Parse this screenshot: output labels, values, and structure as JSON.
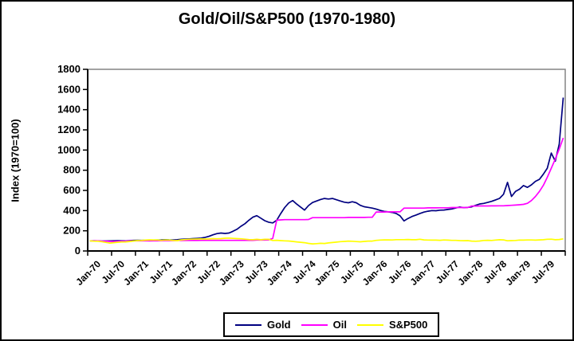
{
  "chart_data": {
    "type": "line",
    "title": "Gold/Oil/S&P500 (1970-1980)",
    "ylabel": "Index (1970=100)",
    "xlabel": "",
    "ylim": [
      0,
      1800
    ],
    "ytick_interval": 200,
    "grid": false,
    "legend_position": "bottom",
    "x_frequency": "monthly",
    "x_range": "Jan-1970 to Dec-1979",
    "x_tick_labels": [
      "Jan-70",
      "Jul-70",
      "Jan-71",
      "Jul-71",
      "Jan-72",
      "Jul-72",
      "Jan-73",
      "Jul-73",
      "Jan-74",
      "Jul-74",
      "Jan-75",
      "Jul-75",
      "Jan-76",
      "Jul-76",
      "Jan-77",
      "Jul-77",
      "Jan-78",
      "Jul-78",
      "Jan-79",
      "Jul-79"
    ],
    "series": [
      {
        "name": "Gold",
        "color": "#000080",
        "values": [
          100,
          101,
          100,
          98,
          99,
          100,
          101,
          102,
          101,
          100,
          103,
          105,
          106,
          105,
          106,
          107,
          108,
          109,
          110,
          112,
          110,
          109,
          111,
          115,
          118,
          120,
          122,
          125,
          128,
          135,
          145,
          160,
          172,
          178,
          174,
          178,
          195,
          215,
          245,
          270,
          305,
          335,
          350,
          325,
          300,
          285,
          278,
          305,
          370,
          430,
          475,
          500,
          465,
          435,
          405,
          450,
          480,
          495,
          510,
          520,
          515,
          520,
          508,
          495,
          483,
          478,
          488,
          478,
          452,
          438,
          432,
          425,
          415,
          402,
          392,
          388,
          382,
          372,
          348,
          298,
          322,
          342,
          356,
          372,
          385,
          394,
          400,
          399,
          404,
          406,
          411,
          416,
          426,
          436,
          429,
          432,
          437,
          452,
          466,
          471,
          481,
          492,
          506,
          521,
          562,
          680,
          540,
          590,
          612,
          648,
          630,
          655,
          690,
          710,
          760,
          820,
          970,
          890,
          1060,
          1520
        ]
      },
      {
        "name": "Oil",
        "color": "#FF00FF",
        "values": [
          100,
          100,
          100,
          98,
          97,
          95,
          93,
          95,
          97,
          98,
          100,
          100,
          100,
          100,
          100,
          100,
          102,
          102,
          102,
          103,
          103,
          103,
          104,
          104,
          104,
          104,
          104,
          104,
          105,
          105,
          105,
          105,
          105,
          105,
          105,
          105,
          105,
          105,
          105,
          105,
          105,
          105,
          108,
          108,
          108,
          110,
          125,
          305,
          308,
          310,
          310,
          310,
          310,
          310,
          310,
          312,
          330,
          330,
          330,
          330,
          330,
          330,
          330,
          330,
          330,
          332,
          332,
          332,
          332,
          332,
          334,
          334,
          386,
          386,
          386,
          388,
          388,
          388,
          388,
          425,
          425,
          425,
          425,
          425,
          425,
          427,
          427,
          427,
          428,
          428,
          428,
          430,
          430,
          430,
          430,
          430,
          445,
          445,
          446,
          446,
          446,
          447,
          447,
          448,
          448,
          450,
          452,
          455,
          458,
          462,
          472,
          500,
          540,
          590,
          650,
          730,
          820,
          910,
          1010,
          1120
        ]
      },
      {
        "name": "S&P500",
        "color": "#FFFF00",
        "values": [
          100,
          97,
          96,
          92,
          85,
          78,
          82,
          86,
          89,
          90,
          94,
          99,
          103,
          104,
          107,
          110,
          109,
          109,
          105,
          109,
          108,
          104,
          103,
          110,
          113,
          116,
          117,
          118,
          119,
          118,
          119,
          122,
          121,
          122,
          126,
          128,
          125,
          122,
          121,
          117,
          113,
          112,
          115,
          111,
          115,
          115,
          104,
          106,
          103,
          100,
          99,
          95,
          90,
          86,
          82,
          75,
          70,
          73,
          76,
          74,
          80,
          84,
          88,
          92,
          95,
          98,
          96,
          93,
          91,
          95,
          98,
          98,
          105,
          108,
          110,
          110,
          109,
          112,
          112,
          112,
          114,
          111,
          111,
          116,
          110,
          108,
          107,
          107,
          106,
          109,
          107,
          105,
          105,
          103,
          102,
          103,
          98,
          96,
          99,
          104,
          106,
          104,
          108,
          111,
          110,
          101,
          103,
          104,
          108,
          107,
          109,
          109,
          107,
          110,
          111,
          116,
          117,
          111,
          114,
          120
        ]
      }
    ]
  },
  "colors": {
    "background": "#FFFFFF",
    "figure_border": "#000000",
    "plot_border": "#848484",
    "axis": "#000000",
    "text": "#000000"
  }
}
